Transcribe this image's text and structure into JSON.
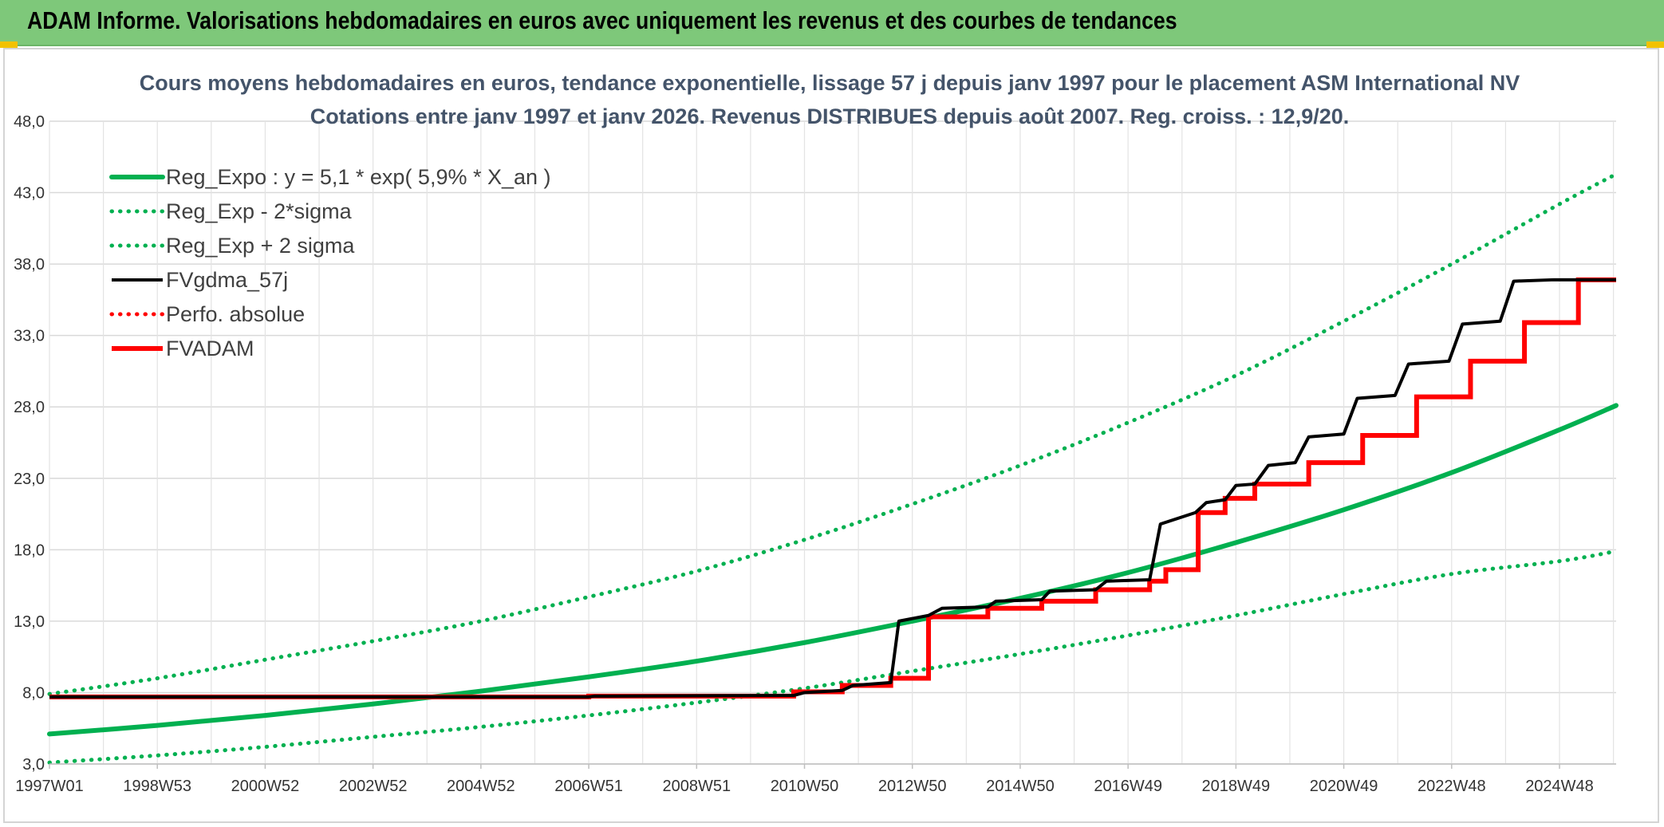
{
  "header": {
    "title": "ADAM Informe. Valorisations hebdomadaires en euros avec uniquement les revenus et des courbes de tendances"
  },
  "colors": {
    "green": "#00b050",
    "black": "#000000",
    "red": "#ff0000",
    "header_bg": "#7ec87a"
  },
  "chart_data": {
    "type": "line",
    "title_lines": [
      "Cours moyens hebdomadaires en euros, tendance exponentielle, lissage 57 j depuis janv 1997 pour le placement ASM International NV",
      "Cotations entre janv 1997 et janv 2026. Revenus DISTRIBUES depuis août 2007. Reg. croiss. : 12,9/20."
    ],
    "x_tick_labels": [
      "1997W01",
      "1998W53",
      "2000W52",
      "2002W52",
      "2004W52",
      "2006W51",
      "2008W51",
      "2010W50",
      "2012W50",
      "2014W50",
      "2016W49",
      "2018W49",
      "2020W49",
      "2022W48",
      "2024W48"
    ],
    "x_tick_years": [
      1997.0,
      1999.0,
      2001.0,
      2003.0,
      2005.0,
      2007.0,
      2009.0,
      2011.0,
      2013.0,
      2015.0,
      2017.0,
      2019.0,
      2021.0,
      2023.0,
      2025.0
    ],
    "xlim": [
      1997.0,
      2026.05
    ],
    "y_tick_labels": [
      "3,0",
      "8,0",
      "13,0",
      "18,0",
      "23,0",
      "28,0",
      "33,0",
      "38,0",
      "43,0",
      "48,0"
    ],
    "y_ticks": [
      3,
      8,
      13,
      18,
      23,
      28,
      33,
      38,
      43,
      48
    ],
    "ylim": [
      3,
      48
    ],
    "grid": true,
    "legend_position": "top-left",
    "series": [
      {
        "name": "Reg_Expo : y = 5,1 * exp( 5,9% *  X_an )",
        "color": "#00b050",
        "style": "solid",
        "x": [
          1997,
          1999,
          2001,
          2003,
          2005,
          2007,
          2009,
          2011,
          2013,
          2015,
          2017,
          2019,
          2021,
          2023,
          2025,
          2026.05
        ],
        "y": [
          5.1,
          5.7,
          6.4,
          7.2,
          8.1,
          9.1,
          10.2,
          11.5,
          13.0,
          14.6,
          16.4,
          18.5,
          20.8,
          23.4,
          26.4,
          28.1
        ]
      },
      {
        "name": "Reg_Exp - 2*sigma",
        "color": "#00b050",
        "style": "dotted",
        "x": [
          1997,
          1999,
          2001,
          2003,
          2005,
          2007,
          2009,
          2011,
          2013,
          2015,
          2017,
          2019,
          2021,
          2023,
          2025,
          2026.05
        ],
        "y": [
          3.1,
          3.6,
          4.2,
          4.9,
          5.6,
          6.4,
          7.3,
          8.3,
          9.5,
          10.7,
          12.0,
          13.4,
          14.9,
          16.3,
          17.2,
          17.9
        ]
      },
      {
        "name": "Reg_Exp + 2 sigma",
        "color": "#00b050",
        "style": "dotted",
        "x": [
          1997,
          1999,
          2001,
          2003,
          2005,
          2007,
          2009,
          2011,
          2013,
          2015,
          2017,
          2019,
          2021,
          2023,
          2025,
          2026.05
        ],
        "y": [
          7.9,
          9.0,
          10.3,
          11.6,
          13.0,
          14.7,
          16.5,
          18.7,
          21.2,
          23.9,
          26.9,
          30.2,
          34.0,
          38.0,
          42.2,
          44.3
        ]
      },
      {
        "name": "FVgdma_57j",
        "color": "#000000",
        "style": "solid",
        "x": [
          1997,
          2007.0,
          2007.1,
          2010.8,
          2011.0,
          2011.7,
          2011.9,
          2012.6,
          2012.75,
          2013.3,
          2013.55,
          2014.4,
          2014.55,
          2015.4,
          2015.55,
          2016.4,
          2016.6,
          2017.4,
          2017.6,
          2018.25,
          2018.45,
          2018.8,
          2019.0,
          2019.35,
          2019.6,
          2020.1,
          2020.35,
          2021.0,
          2021.25,
          2021.95,
          2022.2,
          2022.95,
          2023.2,
          2023.9,
          2024.15,
          2024.9,
          2025.15,
          2026.05
        ],
        "y": [
          7.7,
          7.7,
          7.75,
          7.8,
          8.0,
          8.15,
          8.5,
          8.7,
          13.0,
          13.4,
          13.9,
          14.0,
          14.4,
          14.5,
          15.1,
          15.2,
          15.8,
          15.9,
          19.8,
          20.6,
          21.3,
          21.5,
          22.5,
          22.6,
          23.9,
          24.1,
          25.9,
          26.1,
          28.6,
          28.8,
          31.0,
          31.2,
          33.8,
          34.0,
          36.8,
          36.9,
          36.9,
          36.9
        ]
      },
      {
        "name": "Perfo. absolue",
        "color": "#ff0000",
        "style": "dotted",
        "x": [],
        "y": []
      },
      {
        "name": "FVADAM",
        "color": "#ff0000",
        "style": "step",
        "x": [
          1997,
          2007.0,
          2010.8,
          2011.7,
          2012.6,
          2013.3,
          2014.4,
          2015.4,
          2016.4,
          2017.4,
          2017.7,
          2018.3,
          2018.8,
          2019.35,
          2020.35,
          2021.35,
          2022.35,
          2023.35,
          2024.35,
          2025.35,
          2026.05
        ],
        "y": [
          7.7,
          7.75,
          8.05,
          8.5,
          9.0,
          13.3,
          13.9,
          14.4,
          15.2,
          15.8,
          16.6,
          20.6,
          21.6,
          22.6,
          24.1,
          26.0,
          28.7,
          31.2,
          33.9,
          36.9,
          36.9
        ]
      }
    ]
  }
}
